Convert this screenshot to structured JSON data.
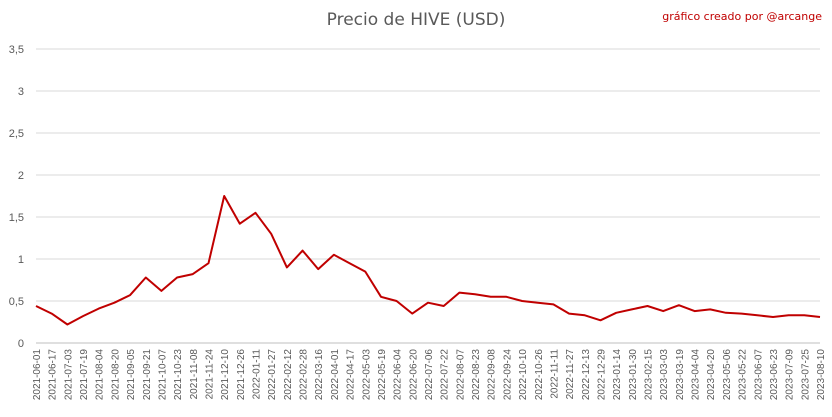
{
  "chart_data": {
    "type": "line",
    "title": "Precio de HIVE (USD)",
    "credit": "gráfico creado por @arcange",
    "xlabel": "",
    "ylabel": "",
    "ylim": [
      0,
      3.5
    ],
    "y_ticks": [
      "0",
      "0,5",
      "1",
      "1,5",
      "2",
      "2,5",
      "3",
      "3,5"
    ],
    "grid": "horizontal",
    "legend": "none",
    "line_color": "#c00000",
    "categories": [
      "2021-06-01",
      "2021-06-17",
      "2021-07-03",
      "2021-07-19",
      "2021-08-04",
      "2021-08-20",
      "2021-09-05",
      "2021-09-21",
      "2021-10-07",
      "2021-10-23",
      "2021-11-08",
      "2021-11-24",
      "2021-12-10",
      "2021-12-26",
      "2022-01-11",
      "2022-01-27",
      "2022-02-12",
      "2022-02-28",
      "2022-03-16",
      "2022-04-01",
      "2022-04-17",
      "2022-05-03",
      "2022-05-19",
      "2022-06-04",
      "2022-06-20",
      "2022-07-06",
      "2022-07-22",
      "2022-08-07",
      "2022-08-23",
      "2022-09-08",
      "2022-09-24",
      "2022-10-10",
      "2022-10-26",
      "2022-11-11",
      "2022-11-27",
      "2022-12-13",
      "2022-12-29",
      "2023-01-14",
      "2023-01-30",
      "2023-02-15",
      "2023-03-03",
      "2023-03-19",
      "2023-04-04",
      "2023-04-20",
      "2023-05-06",
      "2023-05-22",
      "2023-06-07",
      "2023-06-23",
      "2023-07-09",
      "2023-07-25",
      "2023-08-10"
    ],
    "series": [
      {
        "values": [
          0.44,
          0.35,
          0.22,
          0.32,
          0.41,
          0.48,
          0.57,
          0.78,
          0.62,
          0.78,
          0.82,
          0.95,
          1.75,
          1.42,
          1.55,
          1.3,
          0.9,
          1.1,
          0.88,
          1.05,
          0.95,
          0.85,
          0.55,
          0.5,
          0.35,
          0.48,
          0.44,
          0.6,
          0.58,
          0.55,
          0.55,
          0.5,
          0.48,
          0.46,
          0.35,
          0.33,
          0.27,
          0.36,
          0.4,
          0.44,
          0.38,
          0.45,
          0.38,
          0.4,
          0.36,
          0.35,
          0.33,
          0.31,
          0.33,
          0.33,
          0.31
        ]
      }
    ]
  }
}
